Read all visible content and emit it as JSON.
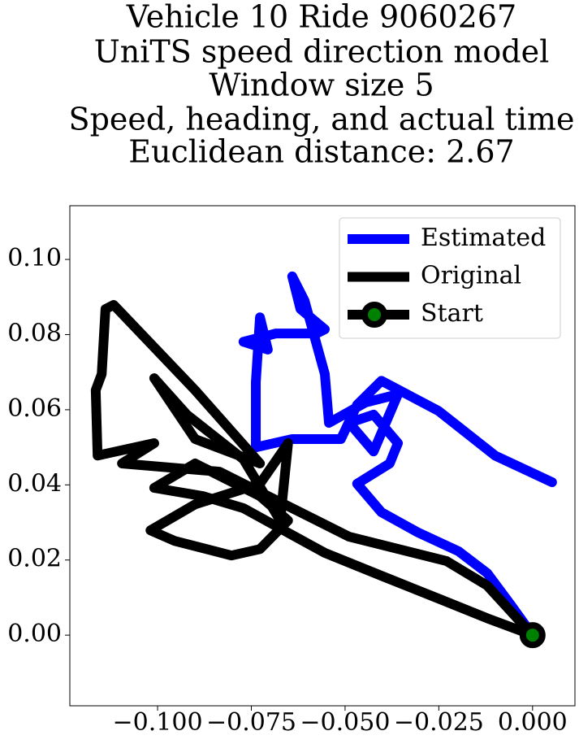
{
  "chart_data": {
    "type": "line",
    "title": [
      "Vehicle 10 Ride 9060267",
      "UniTS speed direction model",
      "Window size 5",
      "Speed, heading, and actual time",
      "Euclidean distance: 2.67"
    ],
    "xlim": [
      -0.1234,
      0.0113
    ],
    "ylim": [
      -0.0188,
      0.1143
    ],
    "xticks": [
      {
        "value": -0.1,
        "label": "−0.100"
      },
      {
        "value": -0.075,
        "label": "−0.075"
      },
      {
        "value": -0.05,
        "label": "−0.050"
      },
      {
        "value": -0.025,
        "label": "−0.025"
      },
      {
        "value": 0,
        "label": "0.000"
      }
    ],
    "yticks": [
      {
        "value": 0,
        "label": "0.00"
      },
      {
        "value": 0.02,
        "label": "0.02"
      },
      {
        "value": 0.04,
        "label": "0.04"
      },
      {
        "value": 0.06,
        "label": "0.06"
      },
      {
        "value": 0.08,
        "label": "0.08"
      },
      {
        "value": 0.1,
        "label": "0.10"
      }
    ],
    "legend": "upper right",
    "series": [
      {
        "name": "Estimated",
        "color": "#0000ff",
        "x": [
          0,
          -0.0056,
          -0.0121,
          -0.0197,
          -0.0305,
          -0.0403,
          -0.0468,
          -0.0381,
          -0.0359,
          -0.0424,
          -0.0489,
          -0.0424,
          -0.0359,
          -0.0446,
          -0.0543,
          -0.0554,
          -0.0608,
          -0.0641,
          -0.0619,
          -0.0554,
          -0.0576,
          -0.0684,
          -0.0771,
          -0.0706,
          -0.0727,
          -0.0738,
          -0.0738,
          -0.0641,
          -0.0511,
          -0.0468,
          -0.0403,
          -0.0251,
          -0.01,
          0.0052
        ],
        "y": [
          0,
          0.0078,
          0.0165,
          0.0223,
          0.0273,
          0.0327,
          0.0403,
          0.0457,
          0.0511,
          0.0587,
          0.0565,
          0.0489,
          0.0641,
          0.0619,
          0.0565,
          0.0695,
          0.089,
          0.0955,
          0.0868,
          0.0814,
          0.0803,
          0.0803,
          0.0781,
          0.076,
          0.0846,
          0.0673,
          0.05,
          0.0522,
          0.0522,
          0.0613,
          0.0677,
          0.0597,
          0.0478,
          0.0407
        ]
      },
      {
        "name": "Original",
        "color": "#000000",
        "x": [
          0,
          -0.0121,
          -0.024,
          -0.0403,
          -0.0554,
          -0.0673,
          -0.0771,
          -0.0879,
          -0.1009,
          -0.09,
          -0.0727,
          -0.0652,
          -0.0727,
          -0.0803,
          -0.0955,
          -0.1019,
          -0.09,
          -0.0727,
          -0.0652,
          -0.0673,
          -0.0771,
          -0.0922,
          -0.1009,
          -0.09,
          -0.0727,
          -0.09,
          -0.1117,
          -0.1139,
          -0.1149,
          -0.1165,
          -0.116,
          -0.1009,
          -0.1095,
          -0.0835,
          -0.0641,
          -0.0489,
          -0.0229,
          -0.0121,
          0
        ],
        "y": [
          0,
          0.0045,
          0.0093,
          0.0158,
          0.0219,
          0.0284,
          0.0338,
          0.037,
          0.0392,
          0.0457,
          0.037,
          0.0305,
          0.0229,
          0.0212,
          0.0251,
          0.0279,
          0.0348,
          0.0403,
          0.0511,
          0.0305,
          0.0468,
          0.0587,
          0.0684,
          0.0522,
          0.0457,
          0.0652,
          0.0879,
          0.0868,
          0.0695,
          0.0652,
          0.0478,
          0.0511,
          0.0457,
          0.0435,
          0.0338,
          0.0262,
          0.0197,
          0.0132,
          0
        ]
      },
      {
        "name": "Start",
        "color": "#000000",
        "marker_color": "#008000",
        "x": [
          0
        ],
        "y": [
          0
        ]
      }
    ]
  }
}
